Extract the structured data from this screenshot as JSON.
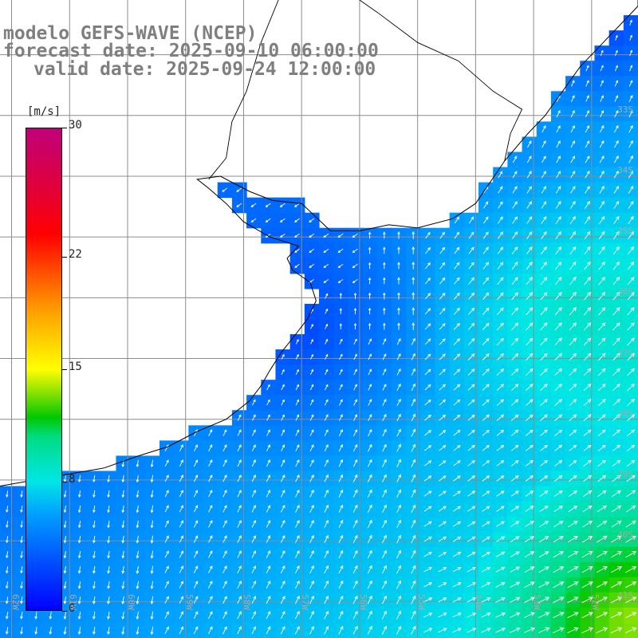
{
  "titles": {
    "line1": "modelo GEFS-WAVE (NCEP)",
    "line2": "forecast date: 2025-09-10 06:00:00",
    "line3": "valid date: 2025-09-24 12:00:00"
  },
  "legend": {
    "unit": "[m/s]",
    "ticks": [
      {
        "value": 30,
        "label": "30"
      },
      {
        "value": 22,
        "label": "22"
      },
      {
        "value": 15,
        "label": "15"
      },
      {
        "value": 8,
        "label": "8"
      },
      {
        "value": 0,
        "label": "0"
      }
    ],
    "min": 0,
    "max": 30
  },
  "map": {
    "projection": "plate-carree",
    "region": "Rio de la Plata / Uruguay coast",
    "lon_range": [
      -62.2,
      -51.2
    ],
    "lat_range": [
      -41.6,
      -31.1
    ],
    "grid_lon": [
      -62,
      -61,
      -60,
      -59,
      -58,
      -57,
      -56,
      -55,
      -54,
      -53,
      -52
    ],
    "grid_lat": [
      -32,
      -33,
      -34,
      -35,
      -36,
      -37,
      -38,
      -39,
      -40,
      -41
    ],
    "lat_labels": [
      {
        "lat": -33,
        "label": "33S"
      },
      {
        "lat": -34,
        "label": "34S"
      },
      {
        "lat": -35,
        "label": "35S"
      },
      {
        "lat": -36,
        "label": "36S"
      },
      {
        "lat": -37,
        "label": "37S"
      },
      {
        "lat": -38,
        "label": "38S"
      },
      {
        "lat": -39,
        "label": "39S"
      },
      {
        "lat": -40,
        "label": "40S"
      },
      {
        "lat": -41,
        "label": "41S"
      }
    ],
    "lon_labels": [
      {
        "lon": -62,
        "label": "62W"
      },
      {
        "lon": -61,
        "label": "61W"
      },
      {
        "lon": -60,
        "label": "60W"
      },
      {
        "lon": -59,
        "label": "59W"
      },
      {
        "lon": -58,
        "label": "58W"
      },
      {
        "lon": -57,
        "label": "57W"
      },
      {
        "lon": -56,
        "label": "56W"
      },
      {
        "lon": -55,
        "label": "55W"
      },
      {
        "lon": -54,
        "label": "54W"
      },
      {
        "lon": -53,
        "label": "53W"
      },
      {
        "lon": -52,
        "label": "52W"
      }
    ],
    "colors": {
      "land": "#ffffff",
      "grid": "#8c8c8c",
      "coast": "#000000",
      "arrow": "#ffffff",
      "label": "#a8a8a8"
    }
  }
}
